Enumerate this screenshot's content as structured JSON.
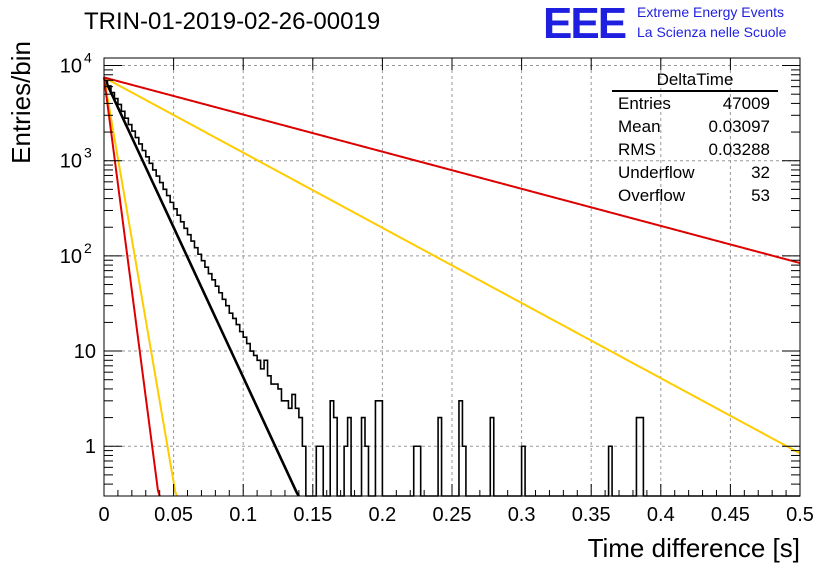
{
  "title": "TRIN-01-2019-02-26-00019",
  "logo": {
    "mark": "EEE",
    "line1": "Extreme Energy Events",
    "line2": "La Scienza nelle Scuole",
    "color": "#1f1fe0"
  },
  "stats_box": {
    "name": "DeltaTime",
    "rows": [
      {
        "label": "Entries",
        "value": "47009"
      },
      {
        "label": "Mean",
        "value": "0.03097"
      },
      {
        "label": "RMS",
        "value": "0.03288"
      },
      {
        "label": "Underflow",
        "value": "32"
      },
      {
        "label": "Overflow",
        "value": "53"
      }
    ]
  },
  "chart_data": {
    "type": "histogram",
    "xlabel": "Time difference [s]",
    "ylabel": "Entries/bin",
    "xlim": [
      0,
      0.5
    ],
    "ylim": [
      0.3,
      12000
    ],
    "yscale": "log",
    "grid": true,
    "x_ticks": [
      "0",
      "0.05",
      "0.1",
      "0.15",
      "0.2",
      "0.25",
      "0.3",
      "0.35",
      "0.4",
      "0.45",
      "0.5"
    ],
    "y_ticks": [
      {
        "value": 1,
        "label": "1"
      },
      {
        "value": 10,
        "label": "10"
      },
      {
        "value": 100,
        "label": "10",
        "sup": "2"
      },
      {
        "value": 1000,
        "label": "10",
        "sup": "3"
      },
      {
        "value": 10000,
        "label": "10",
        "sup": "4"
      }
    ],
    "histogram": {
      "bin_width": 0.0025,
      "color": "#000000",
      "values": [
        7200,
        6100,
        5200,
        4500,
        3900,
        3300,
        2800,
        2400,
        2050,
        1750,
        1500,
        1280,
        1100,
        940,
        800,
        690,
        590,
        500,
        430,
        365,
        312,
        268,
        228,
        195,
        167,
        143,
        122,
        104,
        89,
        76,
        65,
        56,
        48,
        41,
        35,
        30,
        25,
        22,
        19,
        16,
        14,
        12,
        10,
        9,
        8,
        6.5,
        8,
        5.5,
        4.5,
        4.5,
        4,
        3,
        3,
        2.5,
        3.5,
        2.5,
        2,
        1,
        0,
        0,
        0,
        1,
        1,
        0,
        0,
        3,
        2,
        0,
        0,
        1,
        2,
        0,
        0,
        0,
        2,
        1,
        0,
        0,
        3,
        3,
        0,
        0,
        0,
        0,
        0,
        0,
        0,
        0,
        0,
        1,
        1,
        0,
        0,
        0,
        0,
        0,
        2,
        0,
        0,
        0,
        0,
        0,
        3,
        1,
        0,
        0,
        0,
        0,
        0,
        0,
        0,
        2,
        0,
        0,
        0,
        0,
        0,
        0,
        0,
        0,
        1,
        0,
        0,
        0,
        0,
        0,
        0,
        0,
        0,
        0,
        0,
        0,
        0,
        0,
        0,
        0,
        0,
        0,
        0,
        0,
        0,
        0,
        0,
        0,
        0,
        1,
        0,
        0,
        0,
        0,
        0,
        0,
        0,
        2,
        2,
        0,
        0,
        0,
        0,
        0,
        0,
        0,
        0,
        0,
        0,
        0,
        0,
        0,
        0,
        0,
        0,
        0,
        0,
        0,
        0,
        0,
        0,
        0,
        0,
        0,
        0,
        0,
        0,
        0,
        0,
        0,
        0,
        0,
        0,
        0,
        0,
        0,
        0,
        0,
        0,
        0,
        0,
        0,
        0,
        0,
        0,
        0,
        0,
        0,
        0,
        0,
        0,
        0,
        0,
        0,
        0,
        0
      ]
    },
    "curves": [
      {
        "color": "#000000",
        "y0": 7500,
        "slope": -31.5
      },
      {
        "color": "#ffcc00",
        "y0": 7500,
        "slope": -7.9
      },
      {
        "color": "#ffcc00",
        "y0": 7500,
        "slope": -85
      },
      {
        "color": "#dd0000",
        "y0": 7500,
        "slope": -3.9
      },
      {
        "color": "#dd0000",
        "y0": 7500,
        "slope": -112
      }
    ]
  }
}
